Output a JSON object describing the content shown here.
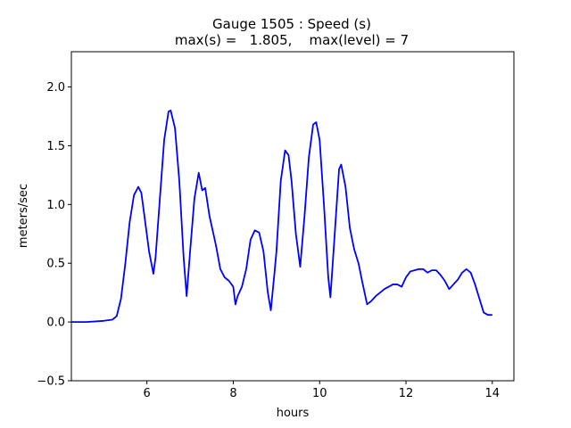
{
  "chart_data": {
    "type": "line",
    "title": "Gauge 1505 : Speed (s)",
    "subtitle": "max(s) =   1.805,    max(level) = 7",
    "xlabel": "hours",
    "ylabel": "meters/sec",
    "xlim": [
      4.25,
      14.5
    ],
    "ylim": [
      -0.5,
      2.3
    ],
    "xticks": [
      6,
      8,
      10,
      12,
      14
    ],
    "yticks": [
      -0.5,
      0.0,
      0.5,
      1.0,
      1.5,
      2.0
    ],
    "xtick_labels": [
      "6",
      "8",
      "10",
      "12",
      "14"
    ],
    "ytick_labels": [
      "−0.5",
      "0.0",
      "0.5",
      "1.0",
      "1.5",
      "2.0"
    ],
    "grid": false,
    "series": [
      {
        "color": "#0000ff",
        "x": [
          4.25,
          4.6,
          5.0,
          5.2,
          5.3,
          5.4,
          5.5,
          5.6,
          5.7,
          5.8,
          5.87,
          5.95,
          6.05,
          6.15,
          6.2,
          6.3,
          6.4,
          6.5,
          6.55,
          6.65,
          6.75,
          6.85,
          6.92,
          7.0,
          7.1,
          7.2,
          7.28,
          7.35,
          7.45,
          7.6,
          7.7,
          7.8,
          7.9,
          8.0,
          8.05,
          8.1,
          8.2,
          8.3,
          8.4,
          8.5,
          8.6,
          8.7,
          8.8,
          8.87,
          8.95,
          9.0,
          9.1,
          9.2,
          9.28,
          9.35,
          9.45,
          9.55,
          9.65,
          9.75,
          9.85,
          9.92,
          10.0,
          10.1,
          10.2,
          10.25,
          10.35,
          10.45,
          10.5,
          10.6,
          10.7,
          10.8,
          10.9,
          11.0,
          11.1,
          11.2,
          11.3,
          11.4,
          11.5,
          11.6,
          11.7,
          11.8,
          11.9,
          12.0,
          12.1,
          12.2,
          12.3,
          12.4,
          12.5,
          12.6,
          12.7,
          12.8,
          12.9,
          13.0,
          13.1,
          13.2,
          13.3,
          13.4,
          13.5,
          13.6,
          13.7,
          13.8,
          13.9,
          14.0
        ],
        "y": [
          0.0,
          0.0,
          0.01,
          0.02,
          0.05,
          0.2,
          0.5,
          0.85,
          1.08,
          1.15,
          1.1,
          0.88,
          0.6,
          0.41,
          0.55,
          1.05,
          1.55,
          1.79,
          1.8,
          1.65,
          1.2,
          0.55,
          0.22,
          0.6,
          1.05,
          1.27,
          1.12,
          1.14,
          0.9,
          0.65,
          0.45,
          0.38,
          0.35,
          0.3,
          0.15,
          0.22,
          0.3,
          0.45,
          0.7,
          0.78,
          0.76,
          0.6,
          0.25,
          0.1,
          0.4,
          0.6,
          1.2,
          1.46,
          1.42,
          1.2,
          0.75,
          0.47,
          0.9,
          1.4,
          1.68,
          1.7,
          1.55,
          1.0,
          0.38,
          0.21,
          0.75,
          1.3,
          1.34,
          1.15,
          0.8,
          0.62,
          0.5,
          0.32,
          0.15,
          0.18,
          0.22,
          0.25,
          0.28,
          0.3,
          0.32,
          0.32,
          0.3,
          0.38,
          0.43,
          0.44,
          0.45,
          0.45,
          0.42,
          0.44,
          0.44,
          0.4,
          0.35,
          0.28,
          0.32,
          0.36,
          0.42,
          0.45,
          0.42,
          0.32,
          0.2,
          0.08,
          0.06,
          0.06
        ]
      }
    ]
  }
}
